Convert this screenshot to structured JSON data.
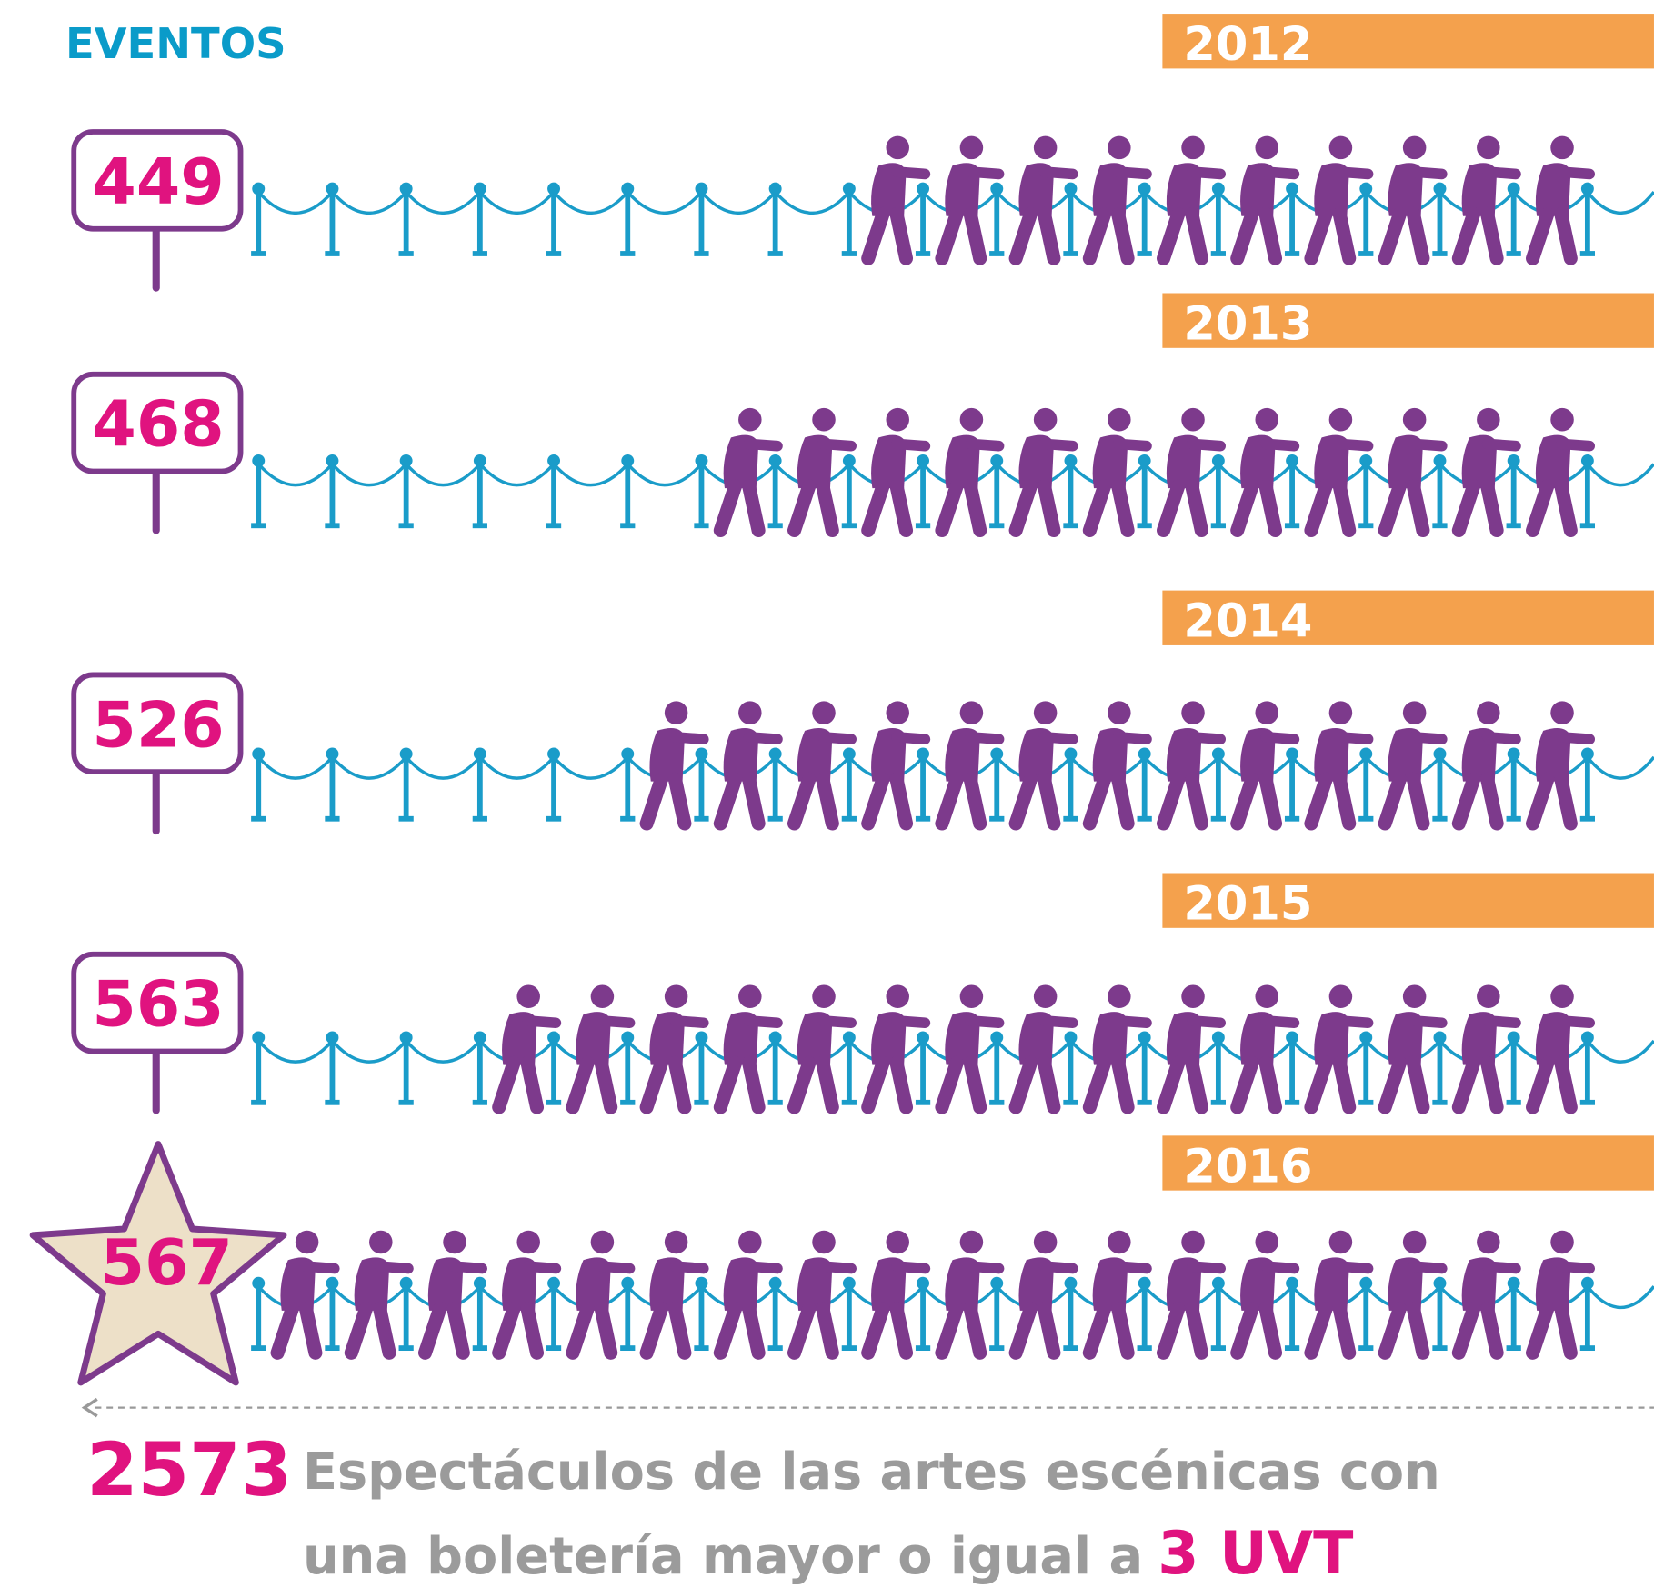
{
  "header": {
    "title": "EVENTOS"
  },
  "years": [
    {
      "year": "2012",
      "events": 449
    },
    {
      "year": "2013",
      "events": 468
    },
    {
      "year": "2014",
      "events": 526
    },
    {
      "year": "2015",
      "events": 563
    },
    {
      "year": "2016",
      "events": 567
    }
  ],
  "total": {
    "value": 2573,
    "description": [
      "Espectáculos de las artes escénicas con",
      "una boletería mayor o igual a"
    ],
    "highlight": "3 UVT"
  }
}
